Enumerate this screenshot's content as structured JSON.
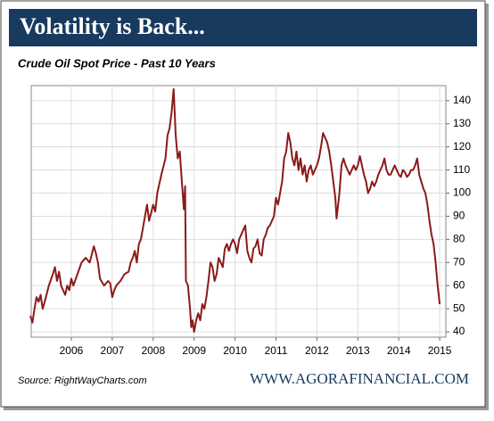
{
  "chart_data": {
    "type": "line",
    "title": "Volatility is Back...",
    "subtitle": "Crude Oil Spot Price - Past 10 Years",
    "source": "Source: RightWayCharts.com",
    "credit": "WWW.AGORAFINANCIAL.COM",
    "x": [
      2005.0,
      2005.05,
      2005.1,
      2005.15,
      2005.2,
      2005.25,
      2005.3,
      2005.35,
      2005.45,
      2005.55,
      2005.6,
      2005.65,
      2005.7,
      2005.75,
      2005.8,
      2005.85,
      2005.9,
      2005.95,
      2006.0,
      2006.05,
      2006.15,
      2006.25,
      2006.35,
      2006.45,
      2006.55,
      2006.6,
      2006.65,
      2006.7,
      2006.8,
      2006.9,
      2006.95,
      2007.0,
      2007.05,
      2007.1,
      2007.2,
      2007.3,
      2007.4,
      2007.45,
      2007.5,
      2007.55,
      2007.6,
      2007.65,
      2007.7,
      2007.75,
      2007.8,
      2007.85,
      2007.9,
      2008.0,
      2008.05,
      2008.1,
      2008.2,
      2008.3,
      2008.35,
      2008.4,
      2008.45,
      2008.5,
      2008.55,
      2008.6,
      2008.65,
      2008.7,
      2008.75,
      2008.78,
      2008.8,
      2008.85,
      2008.9,
      2008.93,
      2008.96,
      2009.0,
      2009.05,
      2009.1,
      2009.15,
      2009.2,
      2009.25,
      2009.3,
      2009.35,
      2009.4,
      2009.45,
      2009.5,
      2009.55,
      2009.6,
      2009.65,
      2009.7,
      2009.75,
      2009.8,
      2009.85,
      2009.9,
      2009.95,
      2010.0,
      2010.05,
      2010.1,
      2010.15,
      2010.25,
      2010.3,
      2010.35,
      2010.4,
      2010.45,
      2010.5,
      2010.55,
      2010.6,
      2010.65,
      2010.7,
      2010.75,
      2010.8,
      2010.85,
      2010.9,
      2010.95,
      2011.0,
      2011.05,
      2011.1,
      2011.15,
      2011.2,
      2011.25,
      2011.3,
      2011.35,
      2011.4,
      2011.45,
      2011.5,
      2011.55,
      2011.6,
      2011.65,
      2011.7,
      2011.75,
      2011.8,
      2011.85,
      2011.9,
      2011.95,
      2012.0,
      2012.05,
      2012.1,
      2012.15,
      2012.2,
      2012.25,
      2012.3,
      2012.35,
      2012.4,
      2012.45,
      2012.48,
      2012.55,
      2012.6,
      2012.65,
      2012.7,
      2012.75,
      2012.8,
      2012.85,
      2012.9,
      2012.95,
      2013.0,
      2013.05,
      2013.1,
      2013.15,
      2013.2,
      2013.25,
      2013.3,
      2013.35,
      2013.4,
      2013.45,
      2013.5,
      2013.55,
      2013.6,
      2013.65,
      2013.7,
      2013.75,
      2013.8,
      2013.85,
      2013.9,
      2013.95,
      2014.0,
      2014.05,
      2014.1,
      2014.15,
      2014.2,
      2014.25,
      2014.3,
      2014.35,
      2014.4,
      2014.45,
      2014.5,
      2014.55,
      2014.6,
      2014.65,
      2014.7,
      2014.75,
      2014.8,
      2014.85,
      2014.9,
      2014.95,
      2015.0
    ],
    "series": [
      {
        "name": "Crude Oil Spot Price",
        "color": "#8b1a1a",
        "values": [
          47,
          44,
          50,
          55,
          53,
          56,
          50,
          53,
          60,
          65,
          68,
          62,
          66,
          60,
          58,
          56,
          60,
          58,
          63,
          60,
          65,
          70,
          72,
          70,
          77,
          74,
          70,
          63,
          60,
          62,
          61,
          55,
          58,
          60,
          62,
          65,
          66,
          70,
          72,
          75,
          70,
          78,
          80,
          85,
          90,
          95,
          88,
          95,
          92,
          100,
          108,
          115,
          125,
          128,
          135,
          145,
          125,
          115,
          118,
          105,
          93,
          103,
          62,
          60,
          50,
          42,
          45,
          40,
          45,
          48,
          45,
          52,
          50,
          55,
          62,
          70,
          68,
          62,
          65,
          72,
          70,
          68,
          76,
          78,
          75,
          78,
          80,
          78,
          74,
          80,
          82,
          86,
          75,
          72,
          70,
          76,
          77,
          80,
          74,
          73,
          80,
          82,
          85,
          86,
          88,
          90,
          98,
          95,
          100,
          105,
          115,
          118,
          126,
          122,
          115,
          112,
          118,
          110,
          115,
          108,
          112,
          105,
          110,
          112,
          108,
          110,
          112,
          115,
          120,
          126,
          124,
          122,
          118,
          112,
          105,
          98,
          89,
          100,
          112,
          115,
          112,
          110,
          108,
          110,
          112,
          110,
          112,
          116,
          112,
          108,
          105,
          100,
          102,
          105,
          103,
          105,
          108,
          110,
          112,
          115,
          110,
          108,
          108,
          110,
          112,
          110,
          108,
          107,
          110,
          109,
          107,
          108,
          110,
          110,
          112,
          115,
          108,
          105,
          102,
          100,
          95,
          88,
          82,
          78,
          70,
          60,
          52
        ]
      }
    ],
    "xlim": [
      2005.02,
      2015.15
    ],
    "xticks": [
      2006,
      2007,
      2008,
      2009,
      2010,
      2011,
      2012,
      2013,
      2014,
      2015
    ],
    "ylim": [
      37.7,
      146.5
    ],
    "yticks": [
      40,
      50,
      60,
      70,
      80,
      90,
      100,
      110,
      120,
      130,
      140
    ],
    "grid": true
  }
}
